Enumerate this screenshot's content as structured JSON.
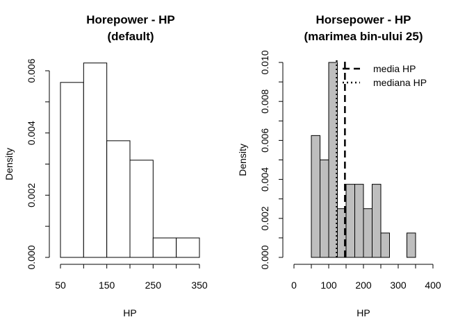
{
  "chart_data": [
    {
      "type": "histogram",
      "title": [
        "Horepower - HP",
        "(default)"
      ],
      "xlabel": "HP",
      "ylabel": "Density",
      "xlim": [
        50,
        350
      ],
      "ylim": [
        0,
        0.0065
      ],
      "xticks": [
        "50",
        "150",
        "250",
        "350"
      ],
      "xtick_values": [
        50,
        150,
        250,
        350
      ],
      "yticks": [
        "0.000",
        "0.002",
        "0.004",
        "0.006"
      ],
      "ytick_values": [
        0,
        0.002,
        0.004,
        0.006
      ],
      "bins": [
        {
          "from": 50,
          "to": 100,
          "density": 0.005625
        },
        {
          "from": 100,
          "to": 150,
          "density": 0.00625
        },
        {
          "from": 150,
          "to": 200,
          "density": 0.00375
        },
        {
          "from": 200,
          "to": 250,
          "density": 0.003125
        },
        {
          "from": 250,
          "to": 300,
          "density": 0.000625
        },
        {
          "from": 300,
          "to": 350,
          "density": 0.000625
        }
      ],
      "bar_color": "#ffffff"
    },
    {
      "type": "histogram",
      "title": [
        "Horsepower - HP",
        "(marimea bin-ului 25)"
      ],
      "xlabel": "HP",
      "ylabel": "Density",
      "xlim": [
        0,
        400
      ],
      "ylim": [
        0,
        0.01
      ],
      "xticks": [
        "0",
        "100",
        "200",
        "300",
        "400"
      ],
      "xtick_values": [
        0,
        100,
        200,
        300,
        400
      ],
      "yticks": [
        "0.000",
        "0.002",
        "0.004",
        "0.006",
        "0.008",
        "0.010"
      ],
      "ytick_values": [
        0,
        0.002,
        0.004,
        0.006,
        0.008,
        0.01
      ],
      "bins": [
        {
          "from": 50,
          "to": 75,
          "density": 0.00625
        },
        {
          "from": 75,
          "to": 100,
          "density": 0.005
        },
        {
          "from": 100,
          "to": 125,
          "density": 0.01
        },
        {
          "from": 125,
          "to": 150,
          "density": 0.0025
        },
        {
          "from": 150,
          "to": 175,
          "density": 0.00375
        },
        {
          "from": 175,
          "to": 200,
          "density": 0.00375
        },
        {
          "from": 200,
          "to": 225,
          "density": 0.0025
        },
        {
          "from": 225,
          "to": 250,
          "density": 0.00375
        },
        {
          "from": 250,
          "to": 275,
          "density": 0.00125
        },
        {
          "from": 325,
          "to": 350,
          "density": 0.00125
        }
      ],
      "bar_color": "#bebebe",
      "reference_lines": [
        {
          "name": "media HP",
          "x": 146.7,
          "style": "dashed"
        },
        {
          "name": "mediana HP",
          "x": 123,
          "style": "dotted"
        }
      ],
      "legend": {
        "position": "top-right",
        "entries": [
          "media HP",
          "mediana HP"
        ]
      }
    }
  ]
}
